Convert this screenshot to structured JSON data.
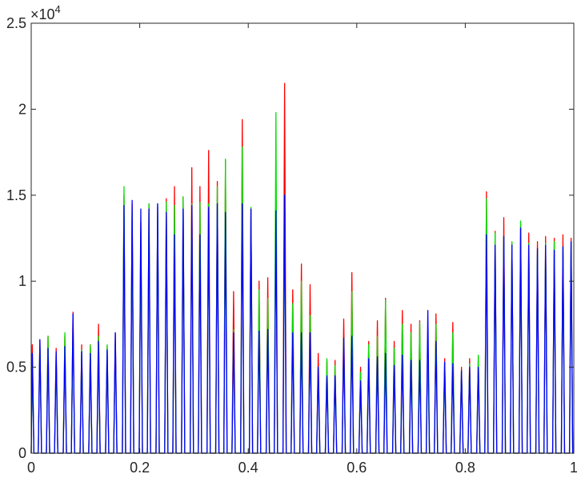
{
  "chart_data": {
    "type": "line",
    "title": "",
    "xlabel": "",
    "ylabel": "",
    "xlim": [
      0,
      1
    ],
    "ylim": [
      0,
      25000
    ],
    "grid": false,
    "legend": "none",
    "y_exponent_label": {
      "base": "×10",
      "exponent": "4"
    },
    "x_ticks": [
      0,
      0.2,
      0.4,
      0.6,
      0.8,
      1
    ],
    "x_tick_labels": [
      "0",
      "0.2",
      "0.4",
      "0.6",
      "0.8",
      "1"
    ],
    "y_ticks": [
      0,
      5000,
      10000,
      15000,
      20000,
      25000
    ],
    "y_tick_labels": [
      "0",
      "0.5",
      "1",
      "1.5",
      "2",
      "2.5"
    ],
    "peak_width": 0.003,
    "series": [
      {
        "color": "#ff0000",
        "x": [
          0.002,
          0.016,
          0.031,
          0.046,
          0.062,
          0.077,
          0.093,
          0.109,
          0.124,
          0.14,
          0.155,
          0.171,
          0.186,
          0.202,
          0.217,
          0.233,
          0.249,
          0.264,
          0.28,
          0.296,
          0.311,
          0.327,
          0.343,
          0.358,
          0.373,
          0.389,
          0.405,
          0.42,
          0.436,
          0.451,
          0.467,
          0.482,
          0.498,
          0.514,
          0.529,
          0.545,
          0.56,
          0.576,
          0.591,
          0.607,
          0.622,
          0.638,
          0.653,
          0.669,
          0.684,
          0.7,
          0.716,
          0.731,
          0.746,
          0.762,
          0.777,
          0.793,
          0.808,
          0.824,
          0.839,
          0.855,
          0.871,
          0.886,
          0.902,
          0.917,
          0.933,
          0.948,
          0.964,
          0.98,
          0.995
        ],
        "y": [
          6300,
          6600,
          6800,
          6100,
          6800,
          8200,
          6300,
          6300,
          7500,
          6200,
          7000,
          15000,
          14500,
          13400,
          14500,
          14300,
          14800,
          15500,
          14900,
          16600,
          15500,
          17600,
          15800,
          17000,
          9400,
          19400,
          14200,
          10000,
          10200,
          14000,
          21500,
          9500,
          11000,
          9800,
          5800,
          5400,
          5400,
          7800,
          10500,
          5000,
          6500,
          7700,
          9000,
          6500,
          8300,
          7500,
          7700,
          6500,
          8100,
          5500,
          7600,
          5000,
          5500,
          5600,
          15200,
          12900,
          13700,
          12200,
          13300,
          12800,
          12300,
          12600,
          12500,
          12700,
          12500
        ]
      },
      {
        "color": "#00e000",
        "x": [
          0.002,
          0.016,
          0.031,
          0.046,
          0.062,
          0.077,
          0.093,
          0.109,
          0.124,
          0.14,
          0.155,
          0.171,
          0.186,
          0.202,
          0.217,
          0.233,
          0.249,
          0.264,
          0.28,
          0.296,
          0.311,
          0.327,
          0.343,
          0.358,
          0.373,
          0.389,
          0.405,
          0.42,
          0.436,
          0.451,
          0.467,
          0.482,
          0.498,
          0.514,
          0.529,
          0.545,
          0.56,
          0.576,
          0.591,
          0.607,
          0.622,
          0.638,
          0.653,
          0.669,
          0.684,
          0.7,
          0.716,
          0.731,
          0.746,
          0.762,
          0.777,
          0.793,
          0.808,
          0.824,
          0.839,
          0.855,
          0.871,
          0.886,
          0.902,
          0.917,
          0.933,
          0.948,
          0.964,
          0.98,
          0.995
        ],
        "y": [
          5500,
          6400,
          6800,
          5500,
          7000,
          7500,
          6000,
          6300,
          6800,
          6300,
          6500,
          15500,
          14000,
          13000,
          14500,
          14500,
          14600,
          14400,
          14900,
          14500,
          14600,
          14500,
          15500,
          17100,
          7200,
          17800,
          14300,
          9500,
          9000,
          19800,
          15000,
          8700,
          10000,
          8000,
          5000,
          5500,
          5100,
          6700,
          9400,
          4700,
          6300,
          6800,
          8900,
          6100,
          7500,
          7000,
          7600,
          6000,
          7500,
          5000,
          7000,
          4800,
          5200,
          5700,
          14800,
          12800,
          12600,
          12300,
          13500,
          12200,
          11800,
          12200,
          12300,
          12000,
          12300
        ]
      },
      {
        "color": "#0000ff",
        "x": [
          0.002,
          0.016,
          0.031,
          0.046,
          0.062,
          0.077,
          0.093,
          0.109,
          0.124,
          0.14,
          0.155,
          0.171,
          0.186,
          0.202,
          0.217,
          0.233,
          0.249,
          0.264,
          0.28,
          0.296,
          0.311,
          0.327,
          0.343,
          0.358,
          0.373,
          0.389,
          0.405,
          0.42,
          0.436,
          0.451,
          0.467,
          0.482,
          0.498,
          0.514,
          0.529,
          0.545,
          0.56,
          0.576,
          0.591,
          0.607,
          0.622,
          0.638,
          0.653,
          0.669,
          0.684,
          0.7,
          0.716,
          0.731,
          0.746,
          0.762,
          0.777,
          0.793,
          0.808,
          0.824,
          0.839,
          0.855,
          0.871,
          0.886,
          0.902,
          0.917,
          0.933,
          0.948,
          0.964,
          0.98,
          0.995
        ],
        "y": [
          5800,
          6600,
          6100,
          5900,
          6200,
          8100,
          5900,
          5800,
          6500,
          6000,
          7000,
          14400,
          14700,
          14200,
          14200,
          14500,
          14000,
          12700,
          14200,
          14400,
          12700,
          14300,
          14500,
          14000,
          7000,
          14500,
          14200,
          7100,
          7200,
          14100,
          15000,
          7000,
          7000,
          7000,
          5000,
          4500,
          4500,
          6700,
          6800,
          4200,
          5500,
          5600,
          5800,
          5100,
          5700,
          5400,
          5400,
          8300,
          6500,
          5300,
          5200,
          4800,
          5000,
          5000,
          12700,
          12100,
          12600,
          12100,
          13100,
          12100,
          11900,
          12100,
          11800,
          12000,
          12300
        ]
      }
    ]
  }
}
